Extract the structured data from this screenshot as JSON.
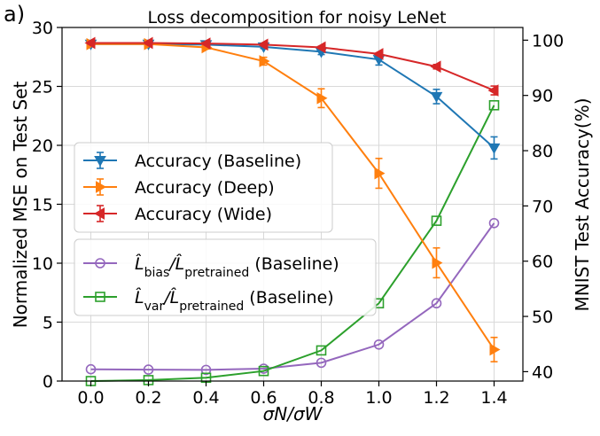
{
  "panel_label": "a)",
  "chart_data": {
    "type": "line",
    "title": "Loss decomposition for noisy LeNet",
    "xlabel": "σN/σW",
    "ylabel_left": "Normalized MSE on Test Set",
    "ylabel_right": "MNIST Test Accuracy(%)",
    "x": [
      0.0,
      0.2,
      0.4,
      0.6,
      0.8,
      1.0,
      1.2,
      1.4
    ],
    "x_tick_labels": [
      "0.0",
      "0.2",
      "0.4",
      "0.6",
      "0.8",
      "1.0",
      "1.2",
      "1.4"
    ],
    "xlim": [
      -0.1,
      1.5
    ],
    "ylim_left": [
      0,
      30
    ],
    "y_left_ticks": [
      0,
      5,
      10,
      15,
      20,
      25,
      30
    ],
    "ylim_right": [
      38.3,
      102.3
    ],
    "y_right_ticks": [
      40,
      50,
      60,
      70,
      80,
      90,
      100
    ],
    "grid": true,
    "legend_top": "upper-left",
    "legend_bottom": "middle-left",
    "accuracy_series": [
      {
        "label": "Accuracy (Baseline)",
        "color": "#1f77b4",
        "marker": "triangle-down",
        "values": [
          99.3,
          99.3,
          99.2,
          98.8,
          97.9,
          96.5,
          89.8,
          80.5
        ],
        "errors": [
          0.2,
          0.2,
          0.2,
          0.3,
          0.5,
          1.0,
          1.3,
          2.0
        ]
      },
      {
        "label": "Accuracy (Deep)",
        "color": "#ff7f0e",
        "marker": "triangle-right",
        "values": [
          99.3,
          99.3,
          98.7,
          96.2,
          89.5,
          75.9,
          59.7,
          44.0
        ],
        "errors": [
          0.2,
          0.2,
          0.3,
          0.7,
          1.7,
          2.7,
          2.7,
          2.2
        ]
      },
      {
        "label": "Accuracy (Wide)",
        "color": "#d62728",
        "marker": "triangle-left",
        "values": [
          99.5,
          99.5,
          99.4,
          99.2,
          98.7,
          97.5,
          95.2,
          90.9
        ],
        "errors": [
          0.1,
          0.1,
          0.1,
          0.1,
          0.2,
          0.2,
          0.4,
          0.8
        ]
      }
    ],
    "mse_series": [
      {
        "label_main": "L̂",
        "label_sub": "bias",
        "label_sep": "/",
        "label_main2": "L̂",
        "label_sub2": "pretrained",
        "label_tail": "(Baseline)",
        "color": "#9467bd",
        "marker": "circle",
        "values": [
          1.0,
          0.97,
          0.95,
          1.05,
          1.55,
          3.1,
          6.6,
          13.4
        ]
      },
      {
        "label_main": "L̂",
        "label_sub": "var",
        "label_sep": "/",
        "label_main2": "L̂",
        "label_sub2": "pretrained",
        "label_tail": "(Baseline)",
        "color": "#2ca02c",
        "marker": "square",
        "values": [
          0.0,
          0.08,
          0.28,
          0.85,
          2.6,
          6.6,
          13.6,
          23.4
        ]
      }
    ]
  }
}
